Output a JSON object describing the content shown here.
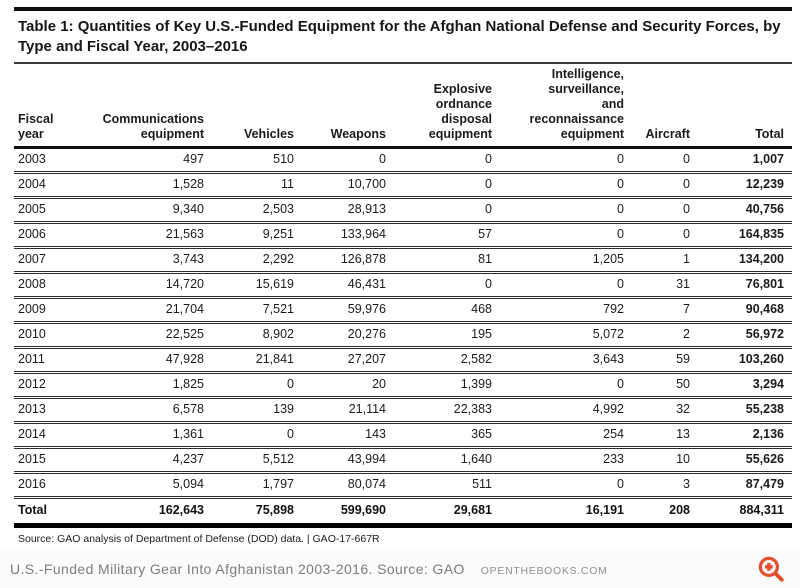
{
  "title": "Table 1: Quantities of Key U.S.-Funded Equipment for the Afghan National Defense and Security Forces, by Type and Fiscal Year, 2003–2016",
  "table": {
    "columns": [
      {
        "label": "Fiscal\nyear",
        "align": "left"
      },
      {
        "label": "Communications\nequipment",
        "align": "right"
      },
      {
        "label": "Vehicles",
        "align": "right"
      },
      {
        "label": "Weapons",
        "align": "right"
      },
      {
        "label": "Explosive\nordnance\ndisposal\nequipment",
        "align": "right"
      },
      {
        "label": "Intelligence,\nsurveillance,\nand\nreconnaissance\nequipment",
        "align": "right"
      },
      {
        "label": "Aircraft",
        "align": "right"
      },
      {
        "label": "Total",
        "align": "right"
      }
    ],
    "rows": [
      [
        "2003",
        "497",
        "510",
        "0",
        "0",
        "0",
        "0",
        "1,007"
      ],
      [
        "2004",
        "1,528",
        "11",
        "10,700",
        "0",
        "0",
        "0",
        "12,239"
      ],
      [
        "2005",
        "9,340",
        "2,503",
        "28,913",
        "0",
        "0",
        "0",
        "40,756"
      ],
      [
        "2006",
        "21,563",
        "9,251",
        "133,964",
        "57",
        "0",
        "0",
        "164,835"
      ],
      [
        "2007",
        "3,743",
        "2,292",
        "126,878",
        "81",
        "1,205",
        "1",
        "134,200"
      ],
      [
        "2008",
        "14,720",
        "15,619",
        "46,431",
        "0",
        "0",
        "31",
        "76,801"
      ],
      [
        "2009",
        "21,704",
        "7,521",
        "59,976",
        "468",
        "792",
        "7",
        "90,468"
      ],
      [
        "2010",
        "22,525",
        "8,902",
        "20,276",
        "195",
        "5,072",
        "2",
        "56,972"
      ],
      [
        "2011",
        "47,928",
        "21,841",
        "27,207",
        "2,582",
        "3,643",
        "59",
        "103,260"
      ],
      [
        "2012",
        "1,825",
        "0",
        "20",
        "1,399",
        "0",
        "50",
        "3,294"
      ],
      [
        "2013",
        "6,578",
        "139",
        "21,114",
        "22,383",
        "4,992",
        "32",
        "55,238"
      ],
      [
        "2014",
        "1,361",
        "0",
        "143",
        "365",
        "254",
        "13",
        "2,136"
      ],
      [
        "2015",
        "4,237",
        "5,512",
        "43,994",
        "1,640",
        "233",
        "10",
        "55,626"
      ],
      [
        "2016",
        "5,094",
        "1,797",
        "80,074",
        "511",
        "0",
        "3",
        "87,479"
      ]
    ],
    "total_row": [
      "Total",
      "162,643",
      "75,898",
      "599,690",
      "29,681",
      "16,191",
      "208",
      "884,311"
    ]
  },
  "source_note": "Source: GAO analysis of Department of Defense (DOD) data.  |  GAO-17-667R",
  "footer": {
    "caption": "U.S.-Funded Military Gear Into Afghanistan 2003-2016. Source: GAO",
    "site": "OPENTHEBOOKS.COM",
    "zoom_icon_color": "#e4502e"
  }
}
